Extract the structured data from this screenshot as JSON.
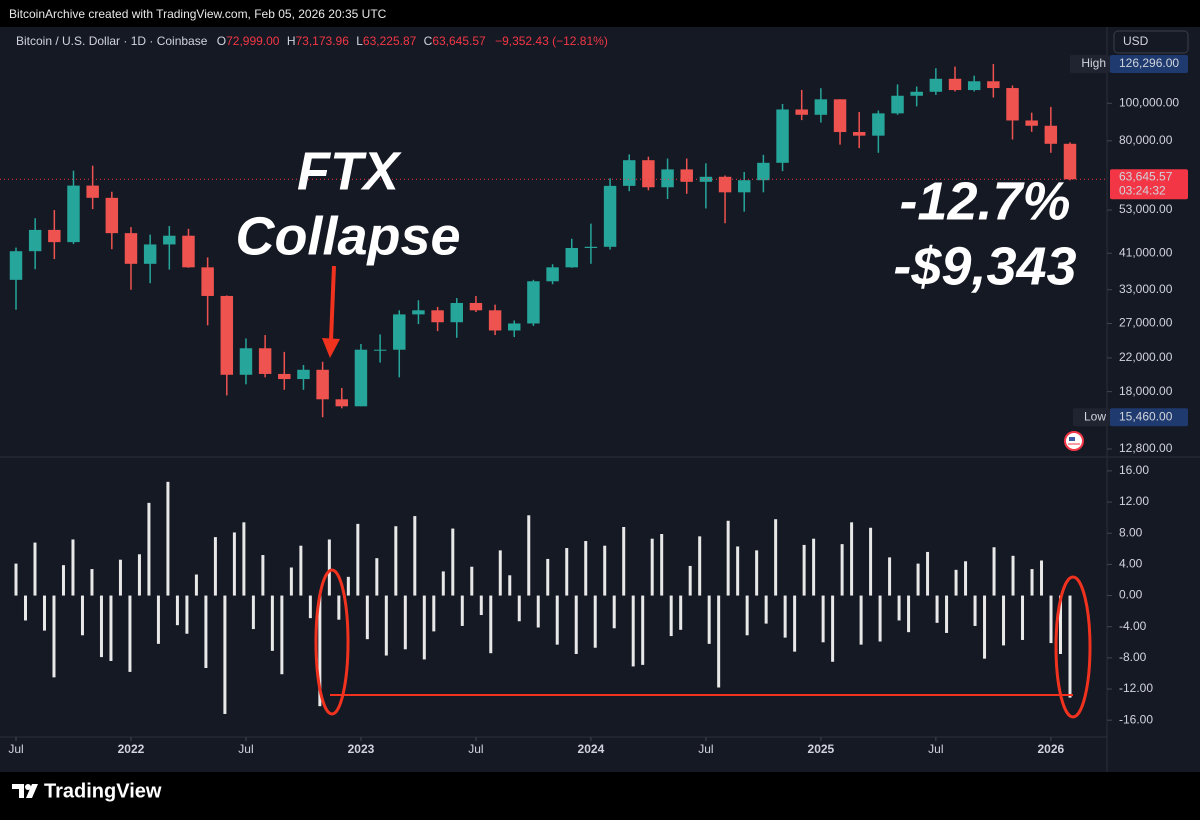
{
  "header": "BitcoinArchive created with TradingView.com, Feb 05, 2026 20:35 UTC",
  "currency": "USD",
  "footer": "TradingView",
  "chart_data": [
    {
      "type": "candlestick",
      "legend": {
        "symbol": "Bitcoin / U.S. Dollar · 1D · Coinbase",
        "ohlc": [
          [
            "O",
            "72,999.00"
          ],
          [
            "H",
            "73,173.96"
          ],
          [
            "L",
            "63,225.87"
          ],
          [
            "C",
            "63,645.57"
          ]
        ],
        "change": "−9,352.43 (−12.81%)"
      },
      "up_color": "#26a69a",
      "down_color": "#ef5350",
      "log_scale": true,
      "x": [
        "2021-07",
        "2021-08",
        "2021-09",
        "2021-10",
        "2021-11",
        "2021-12",
        "2022-01",
        "2022-02",
        "2022-03",
        "2022-04",
        "2022-05",
        "2022-06",
        "2022-07",
        "2022-08",
        "2022-09",
        "2022-10",
        "2022-11",
        "2022-12",
        "2023-01",
        "2023-02",
        "2023-03",
        "2023-04",
        "2023-05",
        "2023-06",
        "2023-07",
        "2023-08",
        "2023-09",
        "2023-10",
        "2023-11",
        "2023-12",
        "2024-01",
        "2024-02",
        "2024-03",
        "2024-04",
        "2024-05",
        "2024-06",
        "2024-07",
        "2024-08",
        "2024-09",
        "2024-10",
        "2024-11",
        "2024-12",
        "2025-01",
        "2025-02",
        "2025-03",
        "2025-04",
        "2025-05",
        "2025-06",
        "2025-07",
        "2025-08",
        "2025-09",
        "2025-10",
        "2025-11",
        "2025-12",
        "2026-01",
        "2026-02"
      ],
      "open": [
        35000,
        41500,
        47100,
        43800,
        61300,
        57000,
        46200,
        38500,
        43200,
        45500,
        37700,
        31800,
        19900,
        23300,
        20000,
        19400,
        20500,
        17200,
        16500,
        23100,
        23100,
        28500,
        29200,
        27200,
        30500,
        29200,
        25900,
        27000,
        34700,
        37700,
        42300,
        42600,
        61200,
        71300,
        60700,
        67500,
        62700,
        64600,
        58900,
        63300,
        70200,
        96400,
        93400,
        102400,
        84300,
        82500,
        94200,
        104600,
        107100,
        115700,
        108200,
        114000,
        109500,
        90300,
        87500,
        78600
      ],
      "high": [
        42400,
        50500,
        53000,
        67000,
        69000,
        59100,
        47900,
        45800,
        48200,
        47400,
        40000,
        31900,
        24700,
        25200,
        22800,
        21100,
        21500,
        18400,
        23900,
        25300,
        29200,
        31000,
        29800,
        31400,
        31800,
        30200,
        27500,
        35000,
        38400,
        44700,
        48900,
        64000,
        73800,
        72800,
        72000,
        72000,
        70000,
        65100,
        66500,
        73600,
        99600,
        108300,
        109400,
        102500,
        95000,
        95800,
        111900,
        110500,
        123200,
        124400,
        117900,
        126296,
        111200,
        94600,
        97900,
        79300
      ],
      "low": [
        29300,
        37300,
        39600,
        43300,
        53300,
        42000,
        33000,
        34300,
        37200,
        37600,
        26700,
        17600,
        18800,
        19600,
        18200,
        18200,
        15460,
        16300,
        16500,
        21400,
        19600,
        26900,
        25800,
        24800,
        28900,
        25200,
        24900,
        26600,
        34100,
        37600,
        38500,
        41900,
        59300,
        59600,
        56600,
        58400,
        53500,
        49000,
        52500,
        58900,
        66800,
        90500,
        89200,
        78200,
        76600,
        74500,
        93400,
        98200,
        105100,
        107300,
        107300,
        103500,
        80600,
        84400,
        74500,
        63225.87
      ],
      "close": [
        41500,
        47100,
        43800,
        61300,
        57000,
        46200,
        38500,
        43200,
        45500,
        37700,
        31800,
        19900,
        23300,
        20000,
        19400,
        20500,
        17200,
        16500,
        23100,
        23100,
        28500,
        29200,
        27200,
        30500,
        29200,
        25900,
        27000,
        34700,
        37700,
        42300,
        42600,
        61200,
        71300,
        60700,
        67500,
        62700,
        64600,
        58900,
        63300,
        70200,
        96400,
        93400,
        102400,
        84300,
        82500,
        94200,
        104600,
        107100,
        115700,
        108200,
        114000,
        109500,
        90300,
        87500,
        78600,
        63645.57
      ],
      "xlim": [
        "2021-07",
        "2026-02"
      ],
      "xticks": [
        {
          "value": "2021-07",
          "label": "Jul"
        },
        {
          "value": "2022-01",
          "label": "2022"
        },
        {
          "value": "2022-07",
          "label": "Jul"
        },
        {
          "value": "2023-01",
          "label": "2023"
        },
        {
          "value": "2023-07",
          "label": "Jul"
        },
        {
          "value": "2024-01",
          "label": "2024"
        },
        {
          "value": "2024-07",
          "label": "Jul"
        },
        {
          "value": "2025-01",
          "label": "2025"
        },
        {
          "value": "2025-07",
          "label": "Jul"
        },
        {
          "value": "2026-01",
          "label": "2026"
        }
      ],
      "ylim": [
        12350,
        156500
      ],
      "yticks": [
        {
          "value": 12800,
          "label": "12,800.00"
        },
        {
          "value": 18000,
          "label": "18,000.00"
        },
        {
          "value": 22000,
          "label": "22,000.00"
        },
        {
          "value": 27000,
          "label": "27,000.00"
        },
        {
          "value": 33000,
          "label": "33,000.00"
        },
        {
          "value": 41000,
          "label": "41,000.00"
        },
        {
          "value": 53000,
          "label": "53,000.00"
        },
        {
          "value": 80000,
          "label": "80,000.00"
        },
        {
          "value": 100000,
          "label": "100,000.00"
        }
      ],
      "price_tags": [
        {
          "name": "High",
          "value": 126296,
          "label": "126,296.00",
          "color": "#1e3a6e"
        },
        {
          "name": "Low",
          "value": 15460,
          "label": "15,460.00",
          "color": "#1e3a6e"
        }
      ],
      "last_price": {
        "value": 63645.57,
        "label": "63,645.57",
        "countdown": "03:24:32",
        "color": "#f23645"
      },
      "annotations": [
        "FTX",
        "Collapse",
        "-12.7%",
        "-$9,343"
      ]
    },
    {
      "type": "bar",
      "color": "#e8e8e8",
      "values": [
        4.1,
        -3.2,
        6.8,
        -4.5,
        -10.5,
        3.9,
        7.2,
        -5.1,
        3.4,
        -7.9,
        -8.4,
        4.6,
        -9.8,
        5.3,
        11.9,
        -6.2,
        14.6,
        -3.8,
        -4.9,
        2.7,
        -9.3,
        7.5,
        -15.2,
        8.1,
        9.4,
        -4.3,
        5.2,
        -7.1,
        -10.1,
        3.6,
        6.4,
        -2.9,
        -14.2,
        7.2,
        -3.1,
        2.4,
        9.2,
        -5.6,
        4.8,
        -7.7,
        8.9,
        -6.9,
        10.2,
        -8.2,
        -4.6,
        3.1,
        8.6,
        -3.9,
        3.7,
        -2.5,
        -7.4,
        5.8,
        2.6,
        -3.3,
        10.3,
        -4.1,
        4.7,
        -6.3,
        6.1,
        -7.5,
        7.0,
        -6.7,
        6.4,
        -4.2,
        8.8,
        -9.1,
        -8.9,
        7.3,
        7.9,
        -5.2,
        -4.4,
        3.8,
        7.6,
        -6.2,
        -11.8,
        9.6,
        6.3,
        -5.1,
        5.8,
        -3.6,
        9.8,
        -5.4,
        -7.2,
        6.5,
        7.3,
        -6.0,
        -8.5,
        6.6,
        9.4,
        -6.3,
        8.7,
        -5.9,
        4.9,
        -3.2,
        -4.7,
        4.1,
        5.6,
        -3.5,
        -4.8,
        3.3,
        4.4,
        -3.9,
        -8.1,
        6.2,
        -6.4,
        5.1,
        -5.7,
        3.4,
        4.5,
        -6.1,
        -7.5,
        -13.1
      ],
      "ylim": [
        -17.9,
        17.4
      ],
      "yticks": [
        {
          "value": 16,
          "label": "16.00"
        },
        {
          "value": 12,
          "label": "12.00"
        },
        {
          "value": 8,
          "label": "8.00"
        },
        {
          "value": 4,
          "label": "4.00"
        },
        {
          "value": 0,
          "label": "0.00"
        },
        {
          "value": -4,
          "label": "-4.00"
        },
        {
          "value": -8,
          "label": "-8.00"
        },
        {
          "value": -12,
          "label": "-12.00"
        },
        {
          "value": -16,
          "label": "-16.00"
        }
      ]
    }
  ]
}
